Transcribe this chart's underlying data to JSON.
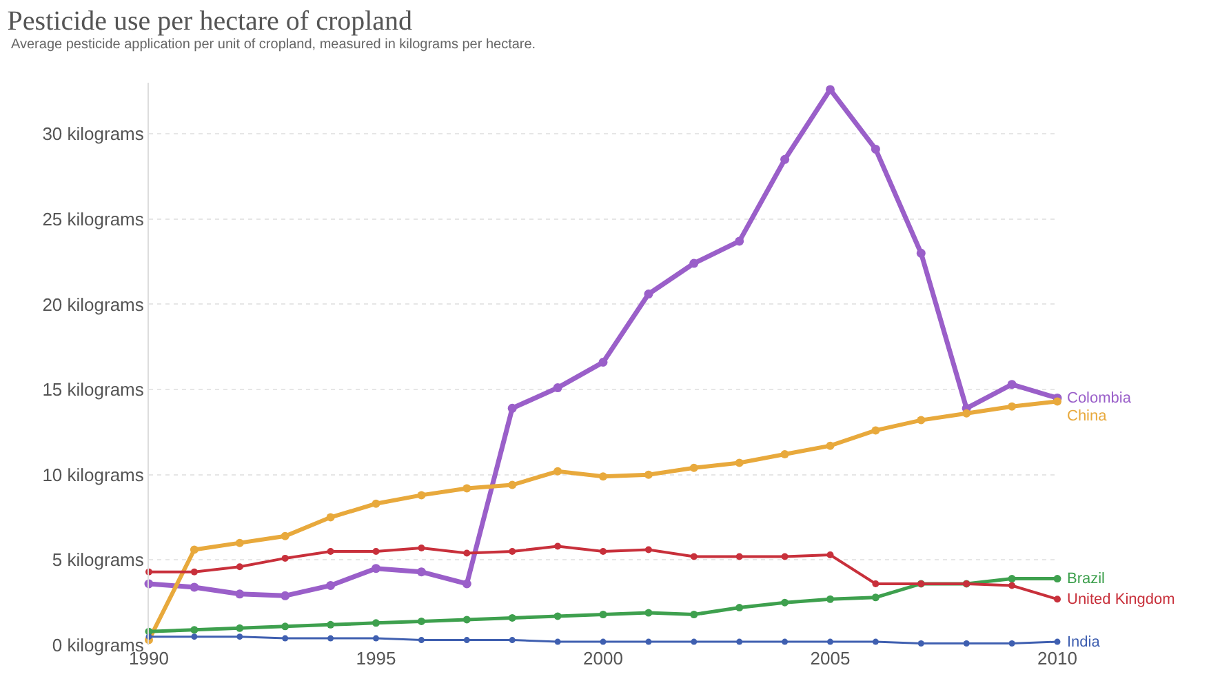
{
  "chart_data": {
    "type": "line",
    "title": "Pesticide use per hectare of cropland",
    "subtitle": "Average pesticide application per unit of cropland, measured in kilograms per hectare.",
    "x": [
      1990,
      1991,
      1992,
      1993,
      1994,
      1995,
      1996,
      1997,
      1998,
      1999,
      2000,
      2001,
      2002,
      2003,
      2004,
      2005,
      2006,
      2007,
      2008,
      2009,
      2010
    ],
    "series": [
      {
        "name": "Colombia",
        "color": "#9a5fc9",
        "values": [
          3.6,
          3.4,
          3.0,
          2.9,
          3.5,
          4.5,
          4.3,
          3.6,
          13.9,
          15.1,
          16.6,
          20.6,
          22.4,
          23.7,
          28.5,
          32.6,
          29.1,
          23.0,
          13.9,
          15.3,
          14.5
        ]
      },
      {
        "name": "China",
        "color": "#e8a93c",
        "values": [
          0.3,
          5.6,
          6.0,
          6.4,
          7.5,
          8.3,
          8.8,
          9.2,
          9.4,
          10.2,
          9.9,
          10.0,
          10.4,
          10.7,
          11.2,
          11.7,
          12.6,
          13.2,
          13.6,
          14.0,
          14.3
        ]
      },
      {
        "name": "Brazil",
        "color": "#3ea04e",
        "values": [
          0.8,
          0.9,
          1.0,
          1.1,
          1.2,
          1.3,
          1.4,
          1.5,
          1.6,
          1.7,
          1.8,
          1.9,
          1.8,
          2.2,
          2.5,
          2.7,
          2.8,
          3.6,
          3.6,
          3.9,
          3.9
        ]
      },
      {
        "name": "United Kingdom",
        "color": "#c8303b",
        "values": [
          4.3,
          4.3,
          4.6,
          5.1,
          5.5,
          5.5,
          5.7,
          5.4,
          5.5,
          5.8,
          5.5,
          5.6,
          5.2,
          5.2,
          5.2,
          5.3,
          3.6,
          3.6,
          3.6,
          3.5,
          2.7
        ]
      },
      {
        "name": "India",
        "color": "#3f5fb0",
        "values": [
          0.5,
          0.5,
          0.5,
          0.4,
          0.4,
          0.4,
          0.3,
          0.3,
          0.3,
          0.2,
          0.2,
          0.2,
          0.2,
          0.2,
          0.2,
          0.2,
          0.2,
          0.1,
          0.1,
          0.1,
          0.2
        ]
      }
    ],
    "xlim": [
      1990,
      2010
    ],
    "xticks": [
      1990,
      1995,
      2000,
      2005,
      2010
    ],
    "ylim": [
      0,
      33
    ],
    "yticks": [
      {
        "value": 0,
        "label": "0 kilograms"
      },
      {
        "value": 5,
        "label": "5 kilograms"
      },
      {
        "value": 10,
        "label": "10 kilograms"
      },
      {
        "value": 15,
        "label": "15 kilograms"
      },
      {
        "value": 20,
        "label": "20 kilograms"
      },
      {
        "value": 25,
        "label": "25 kilograms"
      },
      {
        "value": 30,
        "label": "30 kilograms"
      }
    ],
    "grid": "y",
    "legend": false,
    "marker": "circle",
    "line_style": "solid"
  }
}
